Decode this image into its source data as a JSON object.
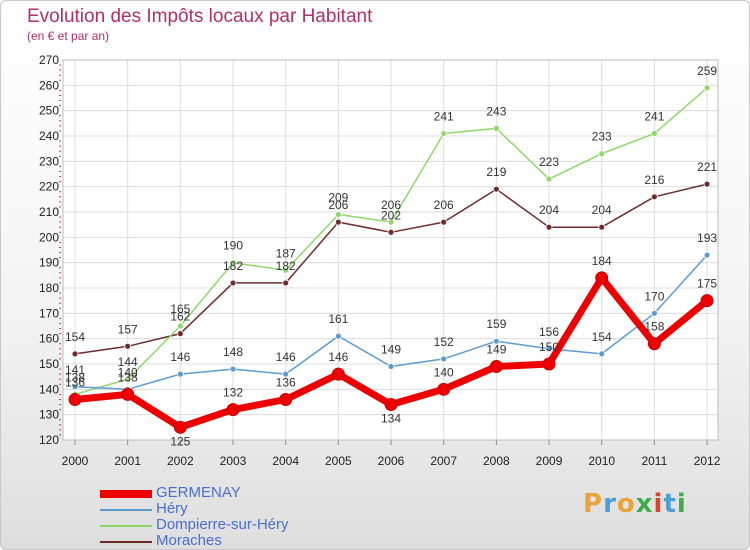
{
  "title": "Evolution des Impôts locaux par Habitant",
  "subtitle": "(en € et par an)",
  "logo": {
    "text": "Proxiti",
    "letters": [
      "P",
      "r",
      "o",
      "x",
      "i",
      "t",
      "i"
    ],
    "colors": [
      "#e8a33a",
      "#4a9fd8",
      "#e8a33a",
      "#3cae49",
      "#d9442f",
      "#4a9fd8",
      "#3cae49"
    ]
  },
  "chart_data": {
    "type": "line",
    "title": "Evolution des Impôts locaux par Habitant",
    "subtitle": "(en € et par an)",
    "xlabel": "",
    "ylabel": "",
    "ylim": [
      120,
      270
    ],
    "grid": true,
    "legend_position": "bottom-left",
    "x": [
      "2000",
      "2001",
      "2002",
      "2003",
      "2004",
      "2005",
      "2006",
      "2007",
      "2008",
      "2009",
      "2010",
      "2011",
      "2012"
    ],
    "yticks": [
      "120",
      "130",
      "140",
      "150",
      "160",
      "170",
      "180",
      "190",
      "200",
      "210",
      "220",
      "230",
      "240",
      "250",
      "260",
      "270"
    ],
    "series": [
      {
        "name": "GERMENAY",
        "color": "#ee0000",
        "bold": true,
        "values": [
          136,
          138,
          125,
          132,
          136,
          146,
          134,
          140,
          149,
          150,
          184,
          158,
          175
        ],
        "labels": [
          "136",
          "138",
          "125",
          "132",
          "136",
          "146",
          "134",
          "140",
          "149",
          "150",
          "184",
          "158",
          "175"
        ]
      },
      {
        "name": "Héry",
        "color": "#5b9bd0",
        "values": [
          141,
          140,
          146,
          148,
          146,
          161,
          149,
          152,
          159,
          156,
          154,
          170,
          193
        ],
        "labels": [
          "141",
          "140",
          "146",
          "148",
          "146",
          "161",
          "149",
          "152",
          "159",
          "156",
          "154",
          "170",
          "193"
        ]
      },
      {
        "name": "Dompierre-sur-Héry",
        "color": "#8ed86a",
        "values": [
          138,
          144,
          165,
          190,
          187,
          209,
          206,
          241,
          243,
          223,
          233,
          241,
          259
        ],
        "labels": [
          "138",
          "144",
          "165",
          "190",
          "187",
          "209",
          "206",
          "241",
          "243",
          "223",
          "233",
          "241",
          "259"
        ]
      },
      {
        "name": "Moraches",
        "color": "#6e2b2b",
        "values": [
          154,
          157,
          162,
          182,
          182,
          206,
          202,
          206,
          219,
          204,
          204,
          216,
          221
        ],
        "labels": [
          "154",
          "157",
          "162",
          "182",
          "182",
          "206",
          "202",
          "206",
          "219",
          "204",
          "204",
          "216",
          "221"
        ]
      }
    ]
  }
}
